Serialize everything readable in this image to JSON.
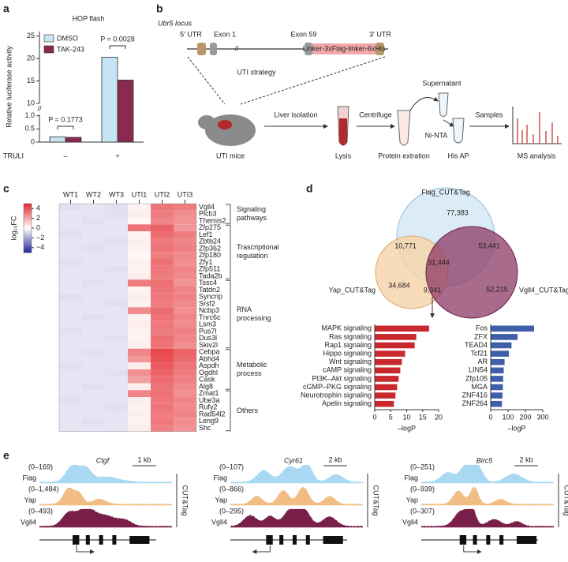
{
  "panel_labels": [
    "a",
    "b",
    "c",
    "d",
    "e"
  ],
  "chart_data": [
    {
      "type": "bar",
      "title": "HOP flash",
      "ylabel": "Relative luciferase activity",
      "xlabel": "TRULI",
      "categories": [
        "–",
        "+"
      ],
      "series": [
        {
          "name": "DMSO",
          "color": "#c6e4f3",
          "values": [
            0.2,
            20.3
          ]
        },
        {
          "name": "TAK-243",
          "color": "#8b2a50",
          "values": [
            0.18,
            15.2
          ]
        }
      ],
      "ylim_low": [
        0,
        1.05
      ],
      "yticks_low": [
        0,
        0.5,
        {
          "value": 1,
          "label": "1.0"
        }
      ],
      "ylim_high": [
        10,
        26
      ],
      "yticks_high": [
        10,
        15,
        20,
        25
      ],
      "annotations": [
        "P = 0.1773",
        "P = 0.0028"
      ]
    },
    {
      "type": "heatmap",
      "colorbar_label": "log₁₀FC",
      "columns": [
        "WT1",
        "WT2",
        "WT3",
        "UTI1",
        "UTI2",
        "UTI3"
      ],
      "clim": [
        -5,
        5
      ],
      "cticks": [
        4,
        2,
        0,
        {
          "value": -2,
          "label": "−2"
        },
        {
          "value": -4,
          "label": "−4"
        }
      ],
      "colormap": [
        "#23239a",
        "#ffffff",
        "#e3262b"
      ],
      "groups": [
        {
          "name": [
            "Signaling",
            "pathways"
          ],
          "rows": [
            {
              "gene": "Vgll4",
              "values": [
                -0.7,
                -0.6,
                -0.7,
                0.3,
                3.2,
                3.0
              ]
            },
            {
              "gene": "Plcb3",
              "values": [
                -0.6,
                -0.6,
                -0.7,
                0.4,
                3.0,
                2.6
              ]
            },
            {
              "gene": "Themis2",
              "values": [
                -0.6,
                -0.7,
                -0.6,
                0.2,
                2.8,
                2.5
              ]
            }
          ]
        },
        {
          "name": [
            "Trascriptional",
            "regulation"
          ],
          "rows": [
            {
              "gene": "Zfp275",
              "values": [
                -0.6,
                -0.6,
                -0.6,
                3.2,
                3.6,
                2.4
              ]
            },
            {
              "gene": "Lef1",
              "values": [
                -0.7,
                -0.6,
                -0.6,
                0.3,
                3.4,
                3.0
              ]
            },
            {
              "gene": "Zbtb24",
              "values": [
                -0.6,
                -0.6,
                -0.7,
                0.4,
                3.1,
                2.8
              ]
            },
            {
              "gene": "Zfp362",
              "values": [
                -0.6,
                -0.7,
                -0.6,
                0.3,
                3.2,
                2.9
              ]
            },
            {
              "gene": "Zfp180",
              "values": [
                -0.6,
                -0.6,
                -0.6,
                0.2,
                3.0,
                2.7
              ]
            },
            {
              "gene": "Zfy1",
              "values": [
                -0.7,
                -0.6,
                -0.6,
                0.3,
                3.3,
                2.6
              ]
            },
            {
              "gene": "Zfp511",
              "values": [
                -0.6,
                -0.6,
                -0.7,
                0.3,
                3.1,
                2.8
              ]
            },
            {
              "gene": "Tada2b",
              "values": [
                -0.6,
                -0.6,
                -0.6,
                0.4,
                3.0,
                2.7
              ]
            }
          ]
        },
        {
          "name": [
            "RNA",
            "processing"
          ],
          "rows": [
            {
              "gene": "Tssc4",
              "values": [
                -0.6,
                -0.7,
                -0.6,
                3.0,
                3.3,
                2.5
              ]
            },
            {
              "gene": "Tatdn2",
              "values": [
                -0.6,
                -0.6,
                -0.6,
                0.3,
                3.2,
                2.8
              ]
            },
            {
              "gene": "Syncrip",
              "values": [
                -0.7,
                -0.6,
                -0.6,
                0.4,
                3.1,
                2.9
              ]
            },
            {
              "gene": "Srsf2",
              "values": [
                -0.6,
                -0.6,
                -0.7,
                0.3,
                3.0,
                2.7
              ]
            },
            {
              "gene": "Ncbp3",
              "values": [
                -0.6,
                -0.6,
                -0.6,
                2.6,
                3.4,
                2.6
              ]
            },
            {
              "gene": "Tnrc6c",
              "values": [
                -0.6,
                -0.7,
                -0.6,
                0.3,
                3.2,
                2.8
              ]
            },
            {
              "gene": "Lsm3",
              "values": [
                -0.6,
                -0.6,
                -0.6,
                0.4,
                3.1,
                2.7
              ]
            },
            {
              "gene": "Pus7l",
              "values": [
                -0.7,
                -0.6,
                -0.6,
                0.3,
                3.0,
                2.9
              ]
            },
            {
              "gene": "Dus3l",
              "values": [
                -0.6,
                -0.6,
                -0.7,
                0.3,
                3.3,
                2.8
              ]
            },
            {
              "gene": "Skiv2l",
              "values": [
                -0.6,
                -0.6,
                -0.6,
                0.4,
                3.2,
                2.6
              ]
            }
          ]
        },
        {
          "name": [
            "Metabolic",
            "process"
          ],
          "rows": [
            {
              "gene": "Cebpa",
              "values": [
                -0.6,
                -0.7,
                -0.6,
                2.8,
                4.2,
                3.6
              ]
            },
            {
              "gene": "Abhd4",
              "values": [
                -0.6,
                -0.6,
                -0.6,
                2.4,
                4.0,
                3.4
              ]
            },
            {
              "gene": "Aspdh",
              "values": [
                -0.7,
                -0.6,
                -0.6,
                0.4,
                3.8,
                3.2
              ]
            },
            {
              "gene": "Ogdhl",
              "values": [
                -0.6,
                -0.6,
                -0.7,
                2.6,
                3.6,
                3.0
              ]
            },
            {
              "gene": "Cask",
              "values": [
                -0.6,
                -0.6,
                -0.6,
                2.2,
                3.4,
                2.9
              ]
            },
            {
              "gene": "Alg8",
              "values": [
                -0.6,
                -0.7,
                -0.6,
                0.4,
                3.2,
                2.7
              ]
            }
          ]
        },
        {
          "name": [
            "Others"
          ],
          "rows": [
            {
              "gene": "Zmat1",
              "values": [
                -0.6,
                -0.6,
                -0.6,
                2.8,
                3.3,
                2.6
              ]
            },
            {
              "gene": "Ube3a",
              "values": [
                -0.7,
                -0.6,
                -0.6,
                0.4,
                3.1,
                2.8
              ]
            },
            {
              "gene": "Rufy2",
              "values": [
                -0.6,
                -0.6,
                -0.7,
                0.3,
                3.2,
                2.7
              ]
            },
            {
              "gene": "Rad54l2",
              "values": [
                -0.6,
                -0.6,
                -0.6,
                0.4,
                3.0,
                2.8
              ]
            },
            {
              "gene": "Leng9",
              "values": [
                -0.6,
                -0.7,
                -0.6,
                0.3,
                3.1,
                2.6
              ]
            },
            {
              "gene": "Shc",
              "values": [
                -0.6,
                -0.6,
                -0.6,
                0.4,
                2.9,
                2.5
              ]
            }
          ]
        }
      ]
    },
    {
      "type": "barh",
      "xlabel": "–logP",
      "color": "#c8282e",
      "categories": [
        "MAPK signaling",
        "Ras signaling",
        "Rap1 signaling",
        "Hippo signaling",
        "Wnt signaling",
        "cAMP signaling",
        "PI3K–Akt signaling",
        "cGMP–PKG signaling",
        "Neurotrophin signaling",
        "Apelin signaling"
      ],
      "values": [
        17,
        13,
        12.5,
        9.5,
        8.5,
        8,
        7.5,
        7,
        6.5,
        6
      ],
      "xlim": [
        0,
        20
      ],
      "xticks": [
        0,
        5,
        10,
        15,
        20
      ]
    },
    {
      "type": "barh",
      "xlabel": "–logP",
      "color": "#3f5fa8",
      "categories": [
        "Fos",
        "ZFX",
        "TEAD4",
        "Tcf21",
        "AR",
        "LIN54",
        "Zfp105",
        "MGA",
        "ZNF416",
        "ZNF264"
      ],
      "values": [
        250,
        155,
        120,
        105,
        80,
        75,
        72,
        70,
        68,
        65
      ],
      "xlim": [
        0,
        300
      ],
      "xticks": [
        0,
        100,
        200,
        300
      ]
    }
  ],
  "diagram_b": {
    "locus": "Ubr5 locus",
    "utr5": "5′ UTR",
    "exon1": "Exon 1",
    "exon59": "Exon 59",
    "linker": "Linker-3xFlag-linker-6xHis",
    "utr3": "3′ UTR",
    "strategy": "UTI strategy",
    "steps": [
      "UTI mice",
      "Liver isolation",
      "Lysis",
      "Centrifuge",
      "Protein extration",
      "Supernatant",
      "Ni-NTA",
      "His AP",
      "Samples",
      "MS analysis"
    ]
  },
  "venn": {
    "sets": [
      "Flag_CUT&Tag",
      "Yap_CUT&Tag",
      "Vgll4_CUT&Tag"
    ],
    "counts": [
      "77,383",
      "10,771",
      "53,441",
      "31,444",
      "34,684",
      "9,341",
      "52,215"
    ]
  },
  "tracks": {
    "side_label": "CUT&Tag",
    "track_names": [
      "Flag",
      "Yap",
      "Vgll4"
    ],
    "loci": [
      {
        "gene": "Ctgf",
        "scale": "1 kb",
        "ranges": [
          "(0–169)",
          "(0–1,484)",
          "(0–493)"
        ]
      },
      {
        "gene": "Cyr61",
        "scale": "2 kb",
        "ranges": [
          "(0–107)",
          "(0–866)",
          "(0–295)"
        ]
      },
      {
        "gene": "Birc5",
        "scale": "2 kb",
        "ranges": [
          "(0–251)",
          "(0–939)",
          "(0–307)"
        ]
      }
    ]
  }
}
